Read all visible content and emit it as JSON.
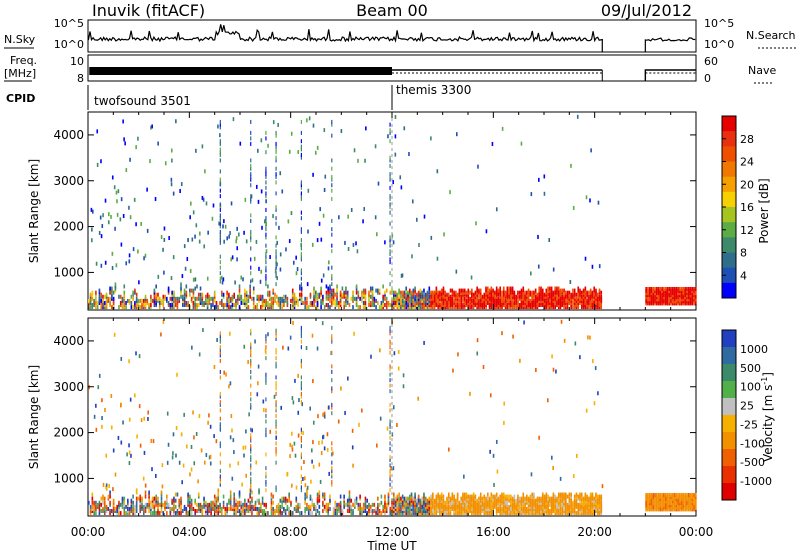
{
  "header": {
    "station": "Inuvik (fitACF)",
    "beam": "Beam 00",
    "date": "09/Jul/2012"
  },
  "panels": {
    "nsky": {
      "label": "N.Sky",
      "right_label": "N.Search",
      "ticks_left": [
        "10^5",
        "10^0"
      ],
      "ticks_right": [
        "10^5",
        "10^0"
      ]
    },
    "freq": {
      "label": "Freq.",
      "unit": "[MHz]",
      "right_label": "Nave",
      "ticks_left": [
        "10",
        "8"
      ],
      "ticks_right": [
        "60",
        "0"
      ]
    },
    "cpid": {
      "label": "CPID",
      "modes": [
        {
          "name": "twofsound 3501",
          "start": "00:00"
        },
        {
          "name": "themis 3300",
          "start": "12:00"
        }
      ]
    }
  },
  "chart_data": [
    {
      "type": "heatmap",
      "name": "power",
      "ylabel": "Slant Range [km]",
      "ylim": [
        180,
        4500
      ],
      "yticks": [
        "1000",
        "2000",
        "3000",
        "4000"
      ],
      "xlabel": "Time UT",
      "xticks": [
        "00:00",
        "04:00",
        "08:00",
        "12:00",
        "16:00",
        "20:00",
        "00:00"
      ],
      "colorbar": {
        "label": "Power [dB]",
        "ticks": [
          "4",
          "8",
          "12",
          "16",
          "20",
          "24",
          "28"
        ],
        "colors": [
          "#0000ff",
          "#1e4fb4",
          "#2e6e8a",
          "#3d8a6a",
          "#5dab44",
          "#a6c41f",
          "#f7d000",
          "#f5a000",
          "#f07800",
          "#ee5000",
          "#e83010",
          "#e60000"
        ]
      },
      "features": [
        {
          "time": "00:00-20:20",
          "range_km": "180-700",
          "value": "strong near-range scatter"
        },
        {
          "time": "13:30-20:20",
          "range_km": "300-600",
          "value": "20-28 dB band"
        },
        {
          "time": "22:00-24:00",
          "range_km": "300-600",
          "value": "20-28 dB band"
        }
      ]
    },
    {
      "type": "heatmap",
      "name": "velocity",
      "ylabel": "Slant Range [km]",
      "ylim": [
        180,
        4500
      ],
      "yticks": [
        "1000",
        "2000",
        "3000",
        "4000"
      ],
      "xlabel": "Time UT",
      "xticks": [
        "00:00",
        "04:00",
        "08:00",
        "12:00",
        "16:00",
        "20:00",
        "00:00"
      ],
      "colorbar": {
        "label": "Velocity [m s^-1]",
        "ticks": [
          "1000",
          "500",
          "100",
          "25",
          "-25",
          "-100",
          "-500",
          "-1000"
        ],
        "colors": [
          "#2040c0",
          "#2f6aa0",
          "#3d8a6a",
          "#52b04a",
          "#c0c0c0",
          "#f6b000",
          "#f39000",
          "#f06000",
          "#ea3000",
          "#e00000"
        ]
      },
      "features": [
        {
          "time": "00:00-12:00",
          "range_km": "180-700",
          "value": "mixed velocities"
        },
        {
          "time": "13:30-20:20",
          "range_km": "300-600",
          "value": "-100 to -500 m/s (orange)"
        },
        {
          "time": "22:00-24:00",
          "range_km": "300-600",
          "value": "-100 to -500 m/s (orange)"
        }
      ]
    }
  ],
  "ylabel_text": "Slant Range [km]",
  "xlabel_text": "Time UT",
  "power_label": "Power [dB]",
  "velocity_label_main": "Velocity [m s",
  "velocity_label_exp": "-1",
  "velocity_label_end": "]"
}
